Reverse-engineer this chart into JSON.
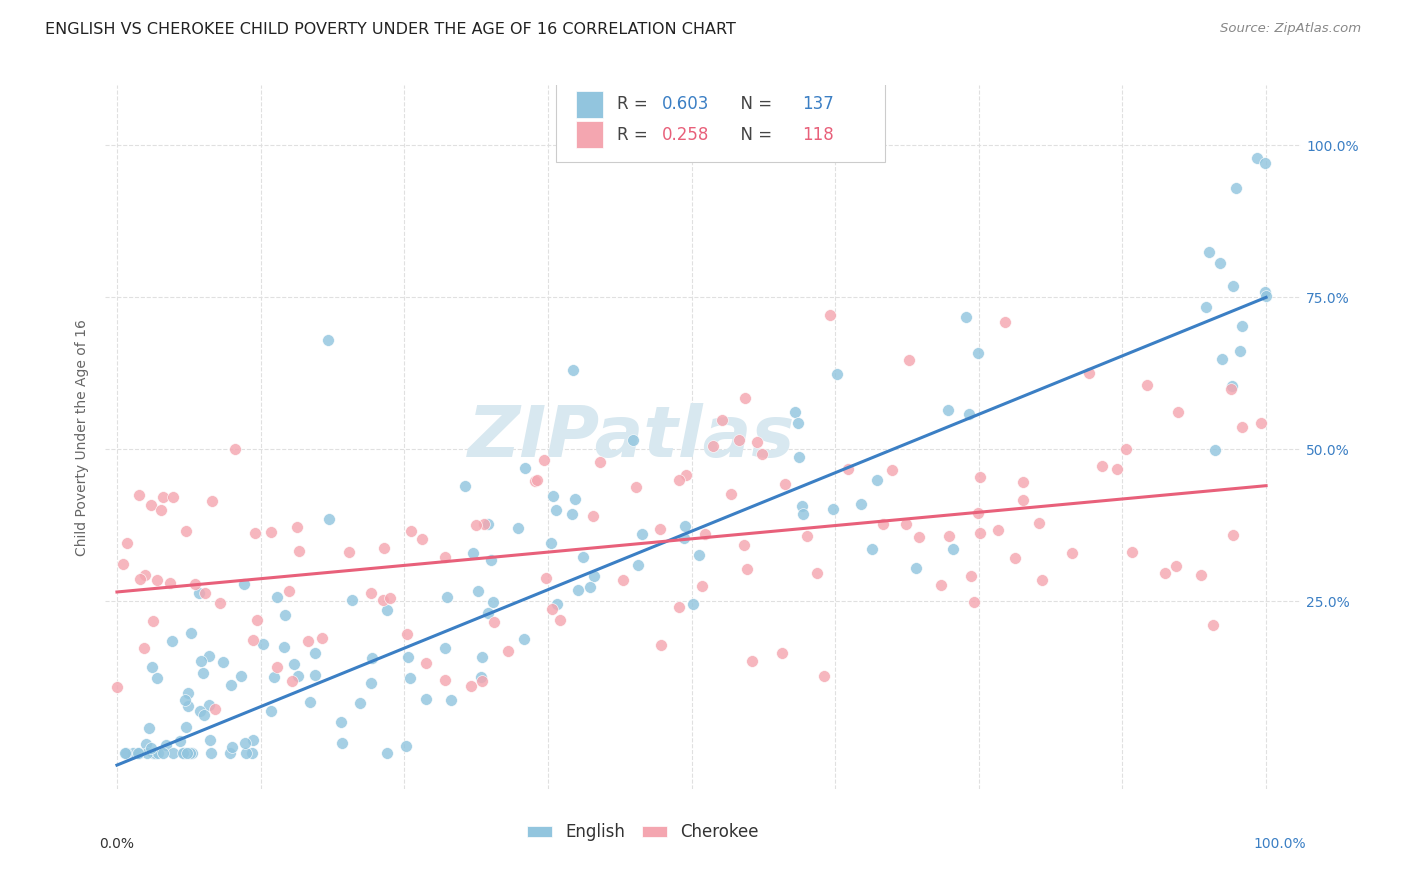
{
  "title": "ENGLISH VS CHEROKEE CHILD POVERTY UNDER THE AGE OF 16 CORRELATION CHART",
  "source": "Source: ZipAtlas.com",
  "ylabel": "Child Poverty Under the Age of 16",
  "english_R": "0.603",
  "english_N": "137",
  "cherokee_R": "0.258",
  "cherokee_N": "118",
  "english_scatter_color": "#92c5de",
  "cherokee_scatter_color": "#f4a6b0",
  "english_line_color": "#3b7fc4",
  "cherokee_line_color": "#e8607a",
  "watermark_color": "#d8e8f0",
  "watermark_text": "ZIPatlas",
  "background_color": "#ffffff",
  "grid_color": "#e0e0e0",
  "ytick_labels": [
    "25.0%",
    "50.0%",
    "75.0%",
    "100.0%"
  ],
  "ytick_values": [
    0.25,
    0.5,
    0.75,
    1.0
  ],
  "right_tick_color": "#3b7fc4",
  "ylabel_color": "#666666",
  "title_color": "#222222",
  "source_color": "#888888",
  "english_reg_intercept": -0.02,
  "english_reg_slope": 0.77,
  "cherokee_reg_intercept": 0.265,
  "cherokee_reg_slope": 0.175,
  "title_fontsize": 11.5,
  "axis_label_fontsize": 10,
  "tick_fontsize": 10,
  "legend_fontsize": 12,
  "source_fontsize": 9.5,
  "watermark_fontsize": 52
}
